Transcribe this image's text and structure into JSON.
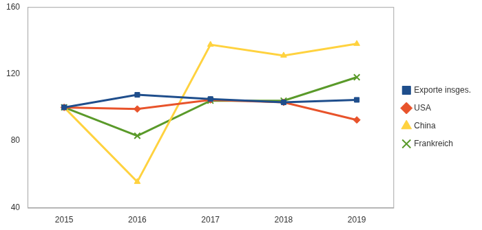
{
  "chart_data": {
    "type": "line",
    "categories": [
      "2015",
      "2016",
      "2017",
      "2018",
      "2019"
    ],
    "series": [
      {
        "name": "Exporte insges.",
        "color": "#1f4e8c",
        "marker": "square",
        "values": [
          100,
          107.5,
          105,
          103,
          104.5
        ]
      },
      {
        "name": "USA",
        "color": "#e8532b",
        "marker": "diamond",
        "values": [
          100,
          99,
          104.5,
          103,
          92.5
        ]
      },
      {
        "name": "China",
        "color": "#ffd23f",
        "marker": "triangle",
        "values": [
          100,
          55.5,
          137.5,
          131,
          138
        ]
      },
      {
        "name": "Frankreich",
        "color": "#5a9a2a",
        "marker": "x",
        "values": [
          100,
          83,
          104,
          104,
          118
        ]
      }
    ],
    "ylim": [
      40,
      160
    ],
    "yticks": [
      40,
      80,
      120,
      160
    ],
    "grid": false,
    "legend": "right"
  }
}
